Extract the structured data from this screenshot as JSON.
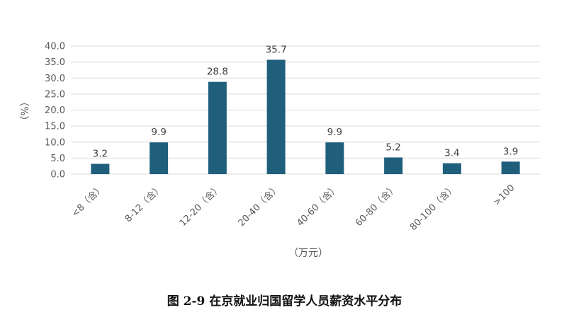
{
  "caption": "图 2-9  在京就业归国留学人员薪资水平分布",
  "chart_data": {
    "type": "bar",
    "categories": [
      "<8（含）",
      "8-12（含）",
      "12-20（含）",
      "20-40（含）",
      "40-60（含）",
      "60-80（含）",
      "80-100（含）",
      ">100"
    ],
    "values": [
      3.2,
      9.9,
      28.8,
      35.7,
      9.9,
      5.2,
      3.4,
      3.9
    ],
    "value_labels": [
      "3.2",
      "9.9",
      "28.8",
      "35.7",
      "9.9",
      "5.2",
      "3.4",
      "3.9"
    ],
    "xlabel": "（万元）",
    "ylabel": "（%）",
    "ylim": [
      0,
      40
    ],
    "yticks": [
      "0.0",
      "5.0",
      "10.0",
      "15.0",
      "20.0",
      "25.0",
      "30.0",
      "35.0",
      "40.0"
    ],
    "grid": true,
    "bar_color": "#1f5f7c",
    "grid_color": "#d9d9d9"
  }
}
